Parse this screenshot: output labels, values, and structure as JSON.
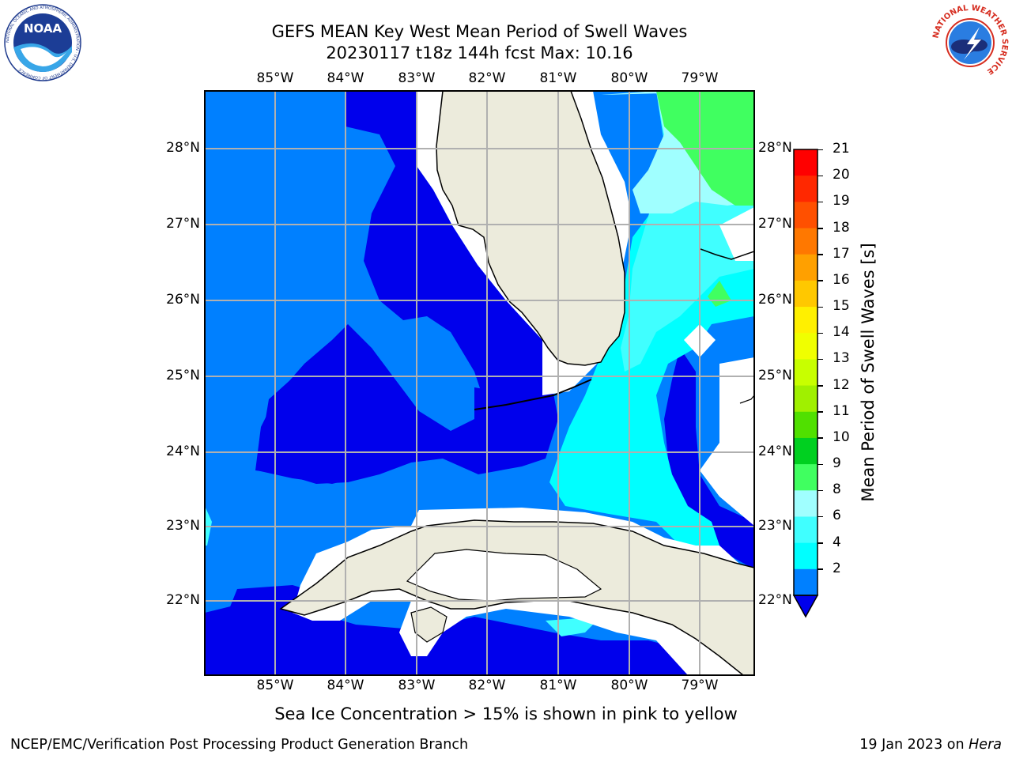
{
  "header": {
    "title_line1": "GEFS MEAN Key West Mean Period of Swell Waves",
    "title_line2": "20230117 t18z 144h fcst   Max: 10.16",
    "noaa_logo_text": "NOAA",
    "noaa_ring_text": "NATIONAL OCEANIC AND ATMOSPHERIC ADMINISTRATION · U.S. DEPARTMENT OF COMMERCE",
    "nws_ring_text": "NATIONAL WEATHER SERVICE"
  },
  "map": {
    "lon_labels": [
      "85°W",
      "84°W",
      "83°W",
      "82°W",
      "81°W",
      "80°W",
      "79°W"
    ],
    "lat_labels": [
      "28°N",
      "27°N",
      "26°N",
      "25°N",
      "24°N",
      "23°N",
      "22°N"
    ],
    "colors": {
      "land": "#ecebdc",
      "c2_4": "#0080ff",
      "c_lt2": "#0000ec",
      "c4_6": "#00ffff",
      "c6_8": "#40ffff",
      "c8_9": "#a0ffff",
      "c9_10": "#40ff60",
      "grid": "#b0b0b0"
    }
  },
  "colorbar": {
    "label": "Mean Period of Swell Waves [s]",
    "ticks": [
      "21",
      "20",
      "19",
      "18",
      "17",
      "16",
      "15",
      "14",
      "13",
      "12",
      "11",
      "10",
      "9",
      "8",
      "6",
      "4",
      "2"
    ],
    "colors": [
      "#ff0000",
      "#ff2800",
      "#ff5000",
      "#ff7800",
      "#ffa000",
      "#ffc800",
      "#fff000",
      "#f0ff00",
      "#c8ff00",
      "#a0f000",
      "#50e000",
      "#00d020",
      "#40ff60",
      "#a0ffff",
      "#40ffff",
      "#00ffff",
      "#0080ff"
    ],
    "under_color": "#0000ec"
  },
  "footer": {
    "note": "Sea Ice Concentration > 15% is shown in pink to yellow",
    "left": "NCEP/EMC/Verification Post Processing Product Generation Branch",
    "right_prefix": "19 Jan 2023 on ",
    "right_machine": "Hera"
  }
}
